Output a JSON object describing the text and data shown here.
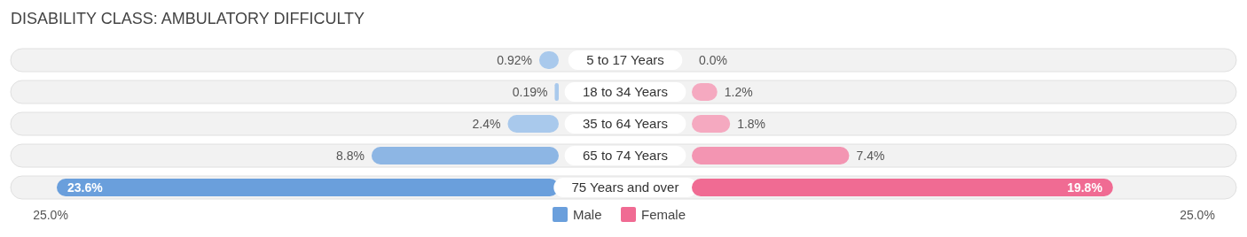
{
  "chart_data": [
    {
      "type": "bar",
      "orientation": "horizontal",
      "title": "DISABILITY CLASS: AMBULATORY DIFFICULTY",
      "categories": [
        "5 to 17 Years",
        "18 to 34 Years",
        "35 to 64 Years",
        "65 to 74 Years",
        "75 Years and over"
      ],
      "series": [
        {
          "name": "Male",
          "color": "#6a9fdc",
          "colors": [
            "#a9c9ec",
            "#a9c9ec",
            "#a9c9ec",
            "#8db6e4",
            "#6a9fdc"
          ],
          "values": [
            0.92,
            0.19,
            2.4,
            8.8,
            23.6
          ],
          "value_labels": [
            "0.92%",
            "0.19%",
            "2.4%",
            "8.8%",
            "23.6%"
          ]
        }
      ],
      "annotations": [
        "25.0%"
      ],
      "legend": "bottom"
    },
    {
      "type": "bar",
      "orientation": "horizontal",
      "categories": [
        null,
        null,
        null,
        null,
        null
      ],
      "series": [
        {
          "name": "Female",
          "color": "#f06b93",
          "colors": [
            "#f5a9c0",
            "#f5a9c0",
            "#f5a9c0",
            "#f395b2",
            "#f06b93"
          ],
          "values": [
            0.0,
            1.2,
            1.8,
            7.4,
            19.8
          ],
          "value_labels": [
            "0.0%",
            "1.2%",
            "1.8%",
            "7.4%",
            "19.8%"
          ]
        }
      ],
      "annotations": [
        "25.0%"
      ],
      "legend": "bottom"
    }
  ]
}
